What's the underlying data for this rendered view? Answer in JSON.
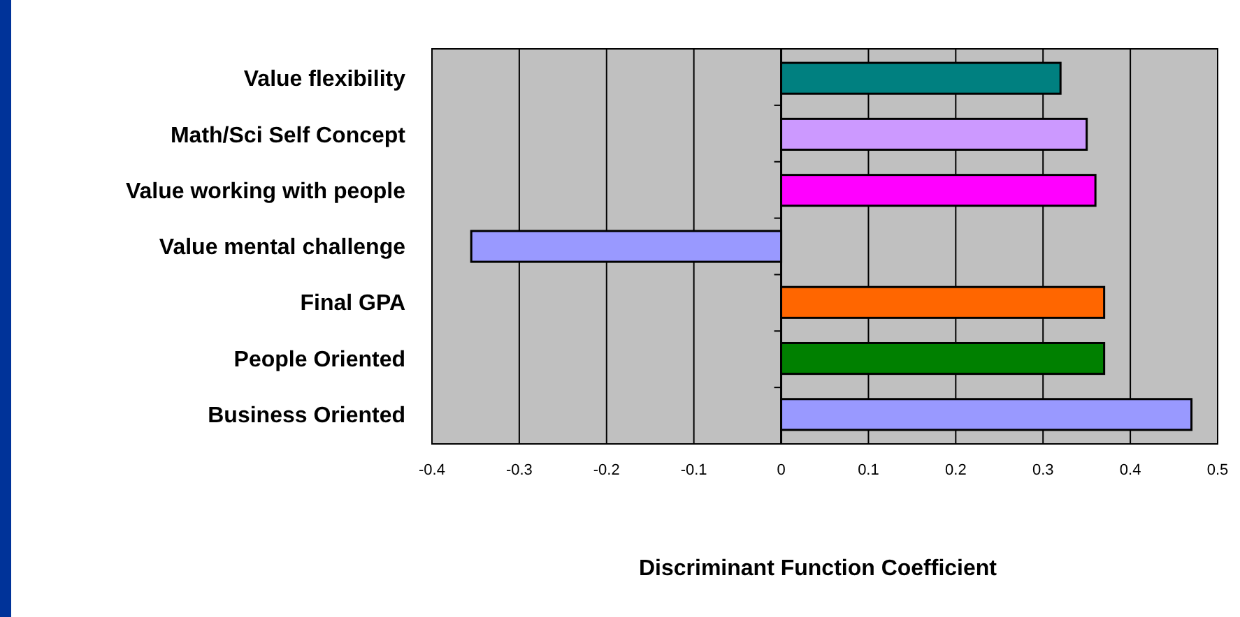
{
  "chart_data": {
    "type": "bar",
    "orientation": "horizontal",
    "xlabel": "Discriminant Function Coefficient",
    "categories": [
      "Value flexibility",
      "Math/Sci Self Concept",
      "Value working with people",
      "Value mental challenge",
      "Final GPA",
      "People Oriented",
      "Business Oriented"
    ],
    "values": [
      0.32,
      0.35,
      0.36,
      -0.355,
      0.37,
      0.37,
      0.47
    ],
    "colors": [
      "#008080",
      "#cc99ff",
      "#ff00ff",
      "#9999ff",
      "#ff6600",
      "#008000",
      "#9999ff"
    ],
    "xlim": [
      -0.4,
      0.5
    ],
    "xticks": [
      -0.4,
      -0.3,
      -0.2,
      -0.1,
      0,
      0.1,
      0.2,
      0.3,
      0.4,
      0.5
    ],
    "grid": "x"
  }
}
